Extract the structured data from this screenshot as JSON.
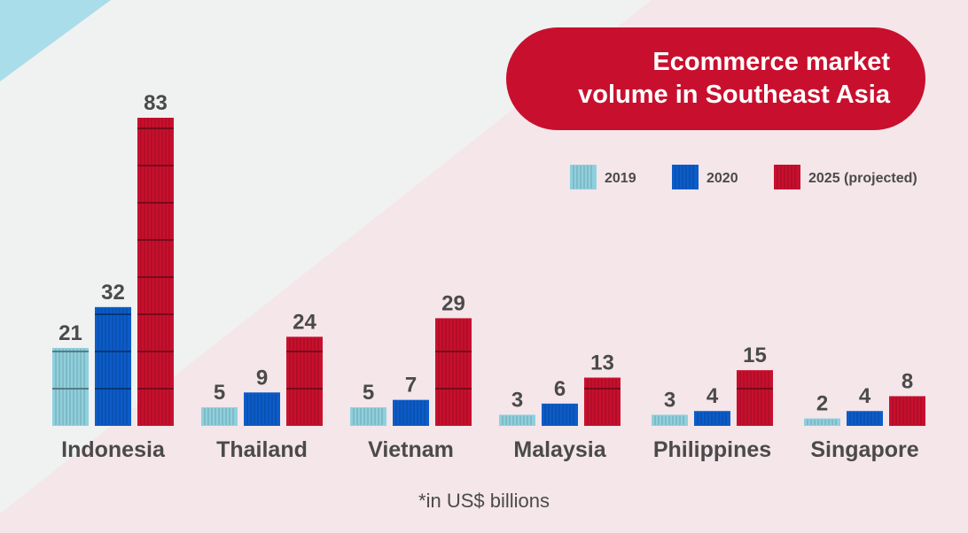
{
  "chart_data": {
    "type": "bar",
    "title": "Ecommerce market\nvolume in Southeast Asia",
    "categories": [
      "Indonesia",
      "Thailand",
      "Vietnam",
      "Malaysia",
      "Philippines",
      "Singapore"
    ],
    "series": [
      {
        "name": "2019",
        "values": [
          21,
          5,
          5,
          3,
          3,
          2
        ],
        "color": "#8fd0de"
      },
      {
        "name": "2020",
        "values": [
          32,
          9,
          7,
          6,
          4,
          4
        ],
        "color": "#0c5cc9"
      },
      {
        "name": "2025 (projected)",
        "values": [
          83,
          24,
          29,
          13,
          15,
          8
        ],
        "color": "#c8102e"
      }
    ],
    "legend_placement": "top-right",
    "footnote": "*in US$ billions",
    "ylim": [
      0,
      83
    ],
    "grid": false
  },
  "colors": {
    "title_bg": "#c8102e",
    "text": "#4a4a4a",
    "corner_accent": "#a9dde9",
    "pink_band": "#f5e6ea"
  }
}
